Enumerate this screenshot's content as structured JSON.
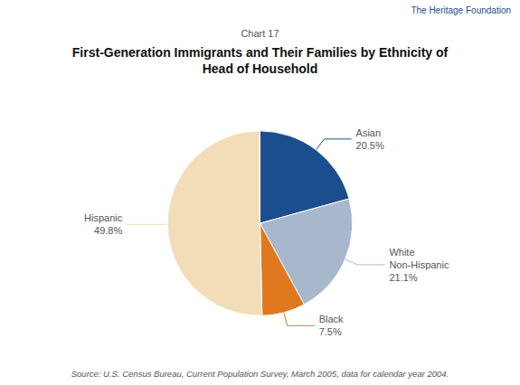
{
  "chart_data": {
    "type": "pie",
    "title": "First-Generation Immigrants and Their Families by Ethnicity of\nHead of Household",
    "subtitle": "Chart 17",
    "annotations": [
      "The Heritage Foundation",
      "Source: U.S. Census Bureau, Current Population Survey, March 2005, data for calendar year 2004."
    ],
    "categories": [
      "Asian",
      "White\nNon-Hispanic",
      "Black",
      "Hispanic"
    ],
    "values": [
      20.5,
      21.1,
      7.5,
      49.8
    ],
    "value_labels": [
      "20.5%",
      "21.1%",
      "7.5%",
      "49.8%"
    ],
    "colors": [
      "#1a4e8c",
      "#a8b8cc",
      "#e07820",
      "#f2ddb8"
    ],
    "data_labels": true
  }
}
